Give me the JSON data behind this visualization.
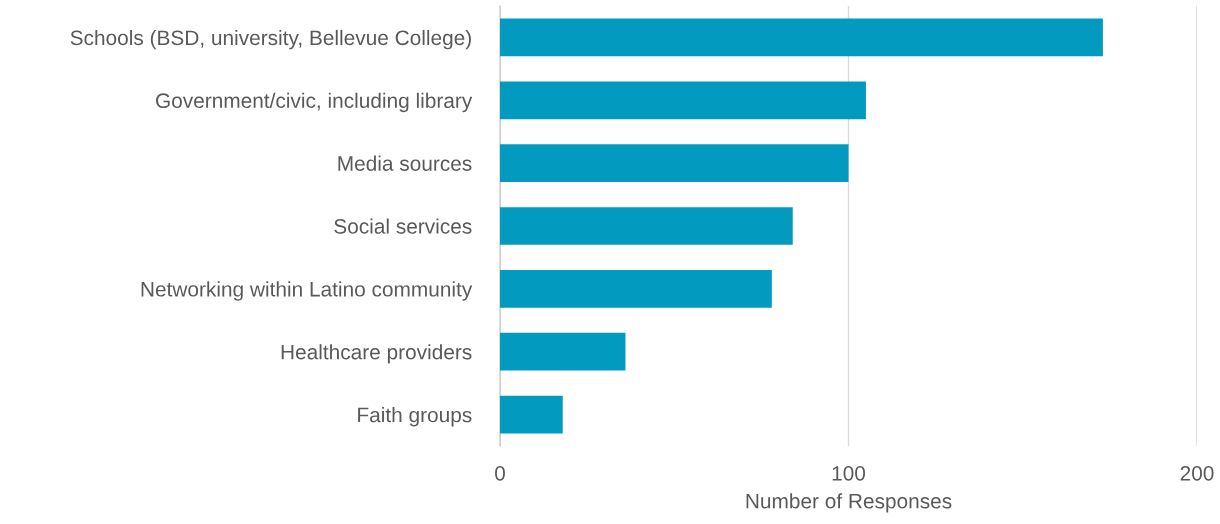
{
  "chart_data": {
    "type": "bar",
    "orientation": "horizontal",
    "xlabel": "Number of Responses",
    "categories": [
      "Schools (BSD, university, Bellevue College)",
      "Government/civic, including library",
      "Media sources",
      "Social services",
      "Networking within Latino community",
      "Healthcare providers",
      "Faith groups"
    ],
    "values": [
      173,
      105,
      100,
      84,
      78,
      36,
      18
    ],
    "color": "#039abf",
    "xlim": [
      0,
      200
    ],
    "xticks": [
      0,
      100,
      200
    ],
    "grid": "x",
    "legend": false
  }
}
